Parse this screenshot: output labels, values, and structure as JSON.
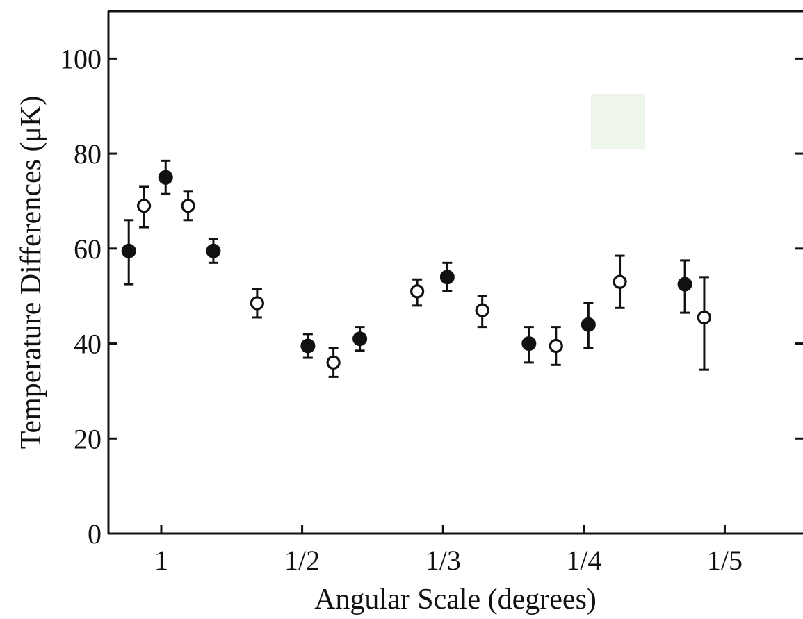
{
  "chart_data": {
    "type": "scatter",
    "title": "",
    "xlabel": "Angular Scale (degrees)",
    "ylabel": "Temperature Differences (μK)",
    "x_axis": {
      "scale": "reciprocal",
      "units": "degrees",
      "range": [
        1.6,
        0.18
      ],
      "ticks": [
        {
          "value": 1.0,
          "label": "1"
        },
        {
          "value": 0.5,
          "label": "1/2"
        },
        {
          "value": 0.3333,
          "label": "1/3"
        },
        {
          "value": 0.25,
          "label": "1/4"
        },
        {
          "value": 0.2,
          "label": "1/5"
        }
      ]
    },
    "y_axis": {
      "range": [
        0,
        110
      ],
      "ticks": [
        0,
        20,
        40,
        60,
        80,
        100
      ],
      "tick_labels": [
        "0",
        "20",
        "40",
        "60",
        "80",
        "100"
      ]
    },
    "grid": false,
    "legend": "none",
    "series": [
      {
        "marker": "filled-circle",
        "points": [
          {
            "x": 1.3,
            "y": 59.5,
            "err_low": 7,
            "err_high": 6.5
          },
          {
            "x": 0.97,
            "y": 75,
            "err_low": 3.5,
            "err_high": 3.5
          },
          {
            "x": 0.73,
            "y": 59.5,
            "err_low": 2.5,
            "err_high": 2.5
          },
          {
            "x": 0.49,
            "y": 39.5,
            "err_low": 2.5,
            "err_high": 2.5
          },
          {
            "x": 0.415,
            "y": 41,
            "err_low": 2.5,
            "err_high": 2.5
          },
          {
            "x": 0.33,
            "y": 54,
            "err_low": 3,
            "err_high": 3
          },
          {
            "x": 0.277,
            "y": 40,
            "err_low": 4,
            "err_high": 3.5
          },
          {
            "x": 0.248,
            "y": 44,
            "err_low": 5,
            "err_high": 4.5
          },
          {
            "x": 0.212,
            "y": 52.5,
            "err_low": 6,
            "err_high": 5
          }
        ]
      },
      {
        "marker": "open-circle",
        "points": [
          {
            "x": 1.14,
            "y": 69,
            "err_low": 4.5,
            "err_high": 4
          },
          {
            "x": 0.84,
            "y": 69,
            "err_low": 3,
            "err_high": 3
          },
          {
            "x": 0.595,
            "y": 48.5,
            "err_low": 3,
            "err_high": 3
          },
          {
            "x": 0.45,
            "y": 36,
            "err_low": 3,
            "err_high": 3
          },
          {
            "x": 0.355,
            "y": 51,
            "err_low": 3,
            "err_high": 2.5
          },
          {
            "x": 0.305,
            "y": 47,
            "err_low": 3.5,
            "err_high": 3
          },
          {
            "x": 0.263,
            "y": 39.5,
            "err_low": 4,
            "err_high": 4
          },
          {
            "x": 0.235,
            "y": 53,
            "err_low": 5.5,
            "err_high": 5.5
          },
          {
            "x": 0.206,
            "y": 45.5,
            "err_low": 11,
            "err_high": 8.5
          }
        ]
      }
    ]
  }
}
